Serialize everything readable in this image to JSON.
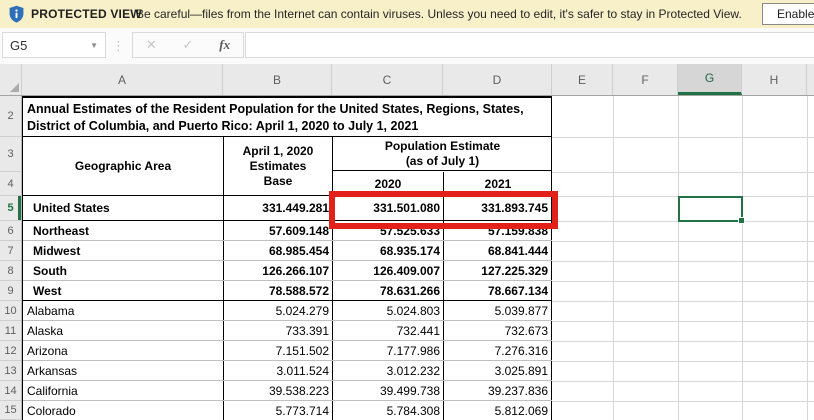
{
  "banner": {
    "label": "PROTECTED VIEW",
    "message": "Be careful—files from the Internet can contain viruses. Unless you need to edit, it's safer to stay in Protected View.",
    "button": "Enable"
  },
  "formula_bar": {
    "name_box": "G5",
    "formula_value": ""
  },
  "icons": {
    "dropdown": "▼",
    "dots": "⋮",
    "cancel": "✕",
    "enter": "✓",
    "fx": "fx"
  },
  "sheet": {
    "columns": [
      "A",
      "B",
      "C",
      "D",
      "E",
      "F",
      "G",
      "H"
    ],
    "selected_column": "G",
    "row_numbers": [
      "2",
      "3",
      "4",
      "5",
      "6",
      "7",
      "8",
      "9",
      "10",
      "11",
      "12",
      "13",
      "14",
      "15"
    ],
    "selected_row": "5",
    "selected_cell": "G5",
    "title": "Annual Estimates of the Resident Population for the United States, Regions, States, District of Columbia, and Puerto Rico: April 1, 2020 to July 1, 2021",
    "headers": {
      "geo": "Geographic Area",
      "base_lines": [
        "April 1, 2020",
        "Estimates",
        "Base"
      ],
      "pop_estimate": "Population Estimate",
      "pop_estimate_sub": "(as of July 1)",
      "y2020": "2020",
      "y2021": "2021"
    },
    "rows": [
      {
        "area": "United States",
        "base": "331.449.281",
        "y2020": "331.501.080",
        "y2021": "331.893.745",
        "bold": true
      },
      {
        "area": "Northeast",
        "base": "57.609.148",
        "y2020": "57.525.633",
        "y2021": "57.159.838",
        "bold": true
      },
      {
        "area": "Midwest",
        "base": "68.985.454",
        "y2020": "68.935.174",
        "y2021": "68.841.444",
        "bold": true
      },
      {
        "area": "South",
        "base": "126.266.107",
        "y2020": "126.409.007",
        "y2021": "127.225.329",
        "bold": true
      },
      {
        "area": "West",
        "base": "78.588.572",
        "y2020": "78.631.266",
        "y2021": "78.667.134",
        "bold": true
      },
      {
        "area": "Alabama",
        "base": "5.024.279",
        "y2020": "5.024.803",
        "y2021": "5.039.877",
        "bold": false
      },
      {
        "area": "Alaska",
        "base": "733.391",
        "y2020": "732.441",
        "y2021": "732.673",
        "bold": false
      },
      {
        "area": "Arizona",
        "base": "7.151.502",
        "y2020": "7.177.986",
        "y2021": "7.276.316",
        "bold": false
      },
      {
        "area": "Arkansas",
        "base": "3.011.524",
        "y2020": "3.012.232",
        "y2021": "3.025.891",
        "bold": false
      },
      {
        "area": "California",
        "base": "39.538.223",
        "y2020": "39.499.738",
        "y2021": "39.237.836",
        "bold": false
      },
      {
        "area": "Colorado",
        "base": "5.773.714",
        "y2020": "5.784.308",
        "y2021": "5.812.069",
        "bold": false
      }
    ]
  },
  "colors": {
    "accent_green": "#217346",
    "annotation_red": "#E3211B",
    "banner_bg": "#F7F0C9",
    "shield_blue": "#2D70B8"
  }
}
